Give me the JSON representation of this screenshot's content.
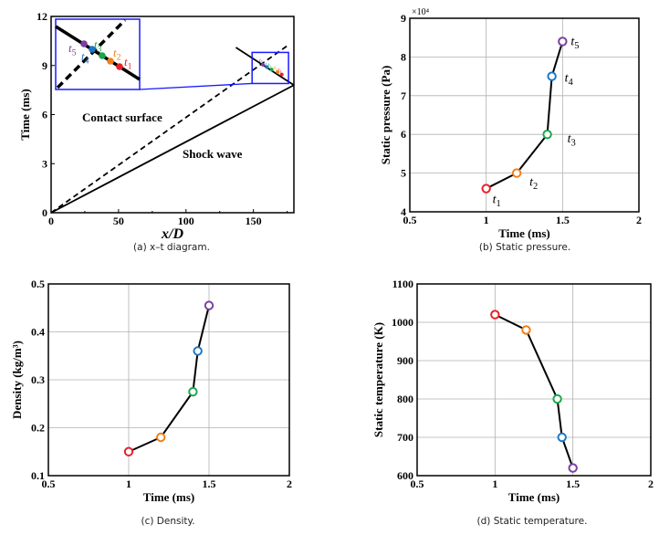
{
  "colors": {
    "t1": "#e8202a",
    "t2": "#f07f1b",
    "t3": "#1aa64a",
    "t4": "#1b78c8",
    "t5": "#7b3fa0",
    "inset_box": "#1a1aff",
    "line": "#000000",
    "grid": "#b0b0b0"
  },
  "point_labels": [
    "t1",
    "t2",
    "t3",
    "t4",
    "t5"
  ],
  "chart_data": [
    {
      "id": "a",
      "type": "line",
      "caption": "(a) x–t diagram.",
      "xlabel": "x/D",
      "ylabel": "Time (ms)",
      "xlim": [
        0,
        180
      ],
      "ylim": [
        0,
        12
      ],
      "xticks": [
        0,
        50,
        100,
        150
      ],
      "yticks": [
        0,
        3,
        6,
        9,
        12
      ],
      "grid": false,
      "series": [
        {
          "style": "solid",
          "points": [
            [
              0,
              0
            ],
            [
              180,
              7.8
            ]
          ]
        },
        {
          "style": "dashed",
          "points": [
            [
              0,
              0
            ],
            [
              175,
              10.2
            ]
          ]
        },
        {
          "style": "solid",
          "points": [
            [
              137,
              10.1
            ],
            [
              180,
              7.8
            ]
          ]
        }
      ],
      "annotations": [
        "Contact surface",
        "Shock wave"
      ],
      "inset": {
        "xlim": [
          149,
          176
        ],
        "ylim": [
          7.9,
          9.8
        ]
      }
    },
    {
      "id": "b",
      "type": "line",
      "caption": "(b) Static pressure.",
      "xlabel": "Time (ms)",
      "ylabel": "Static pressure (Pa)",
      "multiplier": "×10⁴",
      "xlim": [
        0.5,
        2
      ],
      "ylim": [
        40000,
        90000
      ],
      "xticks": [
        0.5,
        1,
        1.5,
        2
      ],
      "yticks": [
        40000,
        50000,
        60000,
        70000,
        80000,
        90000
      ],
      "ytick_labels": [
        "4",
        "5",
        "6",
        "7",
        "8",
        "9"
      ],
      "grid": true,
      "show_point_labels": true,
      "x": [
        1.0,
        1.2,
        1.4,
        1.43,
        1.5
      ],
      "y": [
        46000,
        50000,
        60000,
        75000,
        84000
      ]
    },
    {
      "id": "c",
      "type": "line",
      "caption": "(c) Density.",
      "xlabel": "Time (ms)",
      "ylabel": "Density (kg/m³)",
      "xlim": [
        0.5,
        2
      ],
      "ylim": [
        0.1,
        0.5
      ],
      "xticks": [
        0.5,
        1,
        1.5,
        2
      ],
      "yticks": [
        0.1,
        0.2,
        0.3,
        0.4,
        0.5
      ],
      "ytick_labels": [
        "0.1",
        "0.2",
        "0.3",
        "0.4",
        "0.5"
      ],
      "grid": true,
      "x": [
        1.0,
        1.2,
        1.4,
        1.43,
        1.5
      ],
      "y": [
        0.15,
        0.18,
        0.275,
        0.36,
        0.455
      ]
    },
    {
      "id": "d",
      "type": "line",
      "caption": "(d) Static temperature.",
      "xlabel": "Time (ms)",
      "ylabel": "Static temperature (K)",
      "xlim": [
        0.5,
        2
      ],
      "ylim": [
        600,
        1100
      ],
      "xticks": [
        0.5,
        1,
        1.5,
        2
      ],
      "yticks": [
        600,
        700,
        800,
        900,
        1000,
        1100
      ],
      "ytick_labels": [
        "600",
        "700",
        "800",
        "900",
        "1000",
        "1100"
      ],
      "grid": true,
      "x": [
        1.0,
        1.2,
        1.4,
        1.43,
        1.5
      ],
      "y": [
        1020,
        980,
        800,
        700,
        620
      ]
    }
  ]
}
